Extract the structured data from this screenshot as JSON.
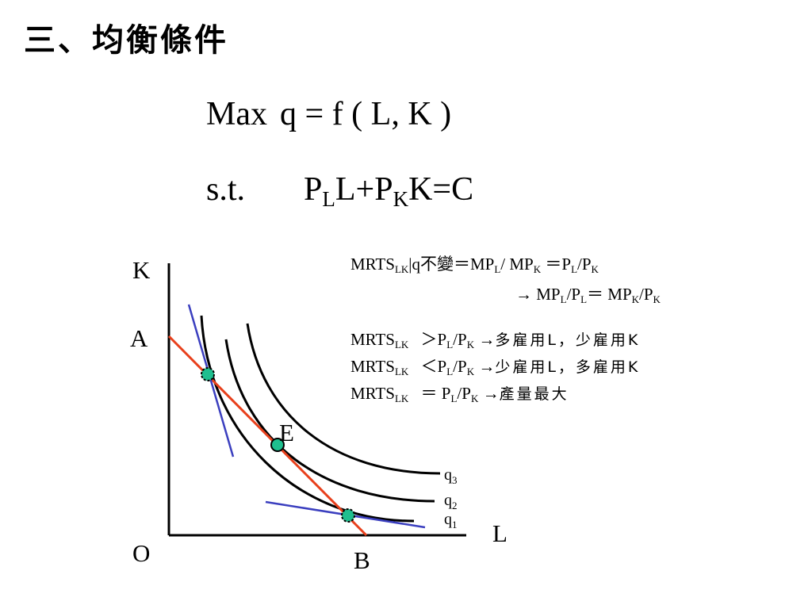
{
  "slide": {
    "title": "三、均衡條件"
  },
  "objective": {
    "max": "Max",
    "function": "q = f ( L, K )"
  },
  "constraint": {
    "label": "s.t.",
    "p1": "P",
    "s1": "L",
    "t1": "L+P",
    "s2": "K",
    "t2": "K=C"
  },
  "conditions": {
    "line1": {
      "a": "MRTS",
      "a_sub": "LK",
      "b": "|q不變＝MP",
      "b_sub": "L",
      "c": "/ MP",
      "c_sub": "K",
      "d": " ＝P",
      "d_sub": "L",
      "e": "/P",
      "e_sub": "K"
    },
    "line2": {
      "a": "→  MP",
      "a_sub": "L",
      "b": "/P",
      "b_sub": "L",
      "c": "＝ MP",
      "c_sub": "K",
      "d": "/P",
      "d_sub": "K"
    },
    "line3": {
      "a": "MRTS",
      "a_sub": "LK",
      "b": " ＞P",
      "b_sub": "L",
      "c": "/P",
      "c_sub": "K",
      "d": " →",
      "e": "多雇用L，少雇用K"
    },
    "line4": {
      "a": "MRTS",
      "a_sub": "LK",
      "b": " ＜P",
      "b_sub": "L",
      "c": "/P",
      "c_sub": "K",
      "d": " →",
      "e": "少雇用L，多雇用K"
    },
    "line5": {
      "a": "MRTS",
      "a_sub": "LK",
      "b": " ＝ P",
      "b_sub": "L",
      "c": "/P",
      "c_sub": "K",
      "d": " →",
      "e": "產量最大"
    }
  },
  "diagram": {
    "labels": {
      "k_axis": "K",
      "l_axis": "L",
      "origin": "O",
      "a": "A",
      "b": "B",
      "e": "E"
    },
    "isoquants": [
      {
        "name": "q",
        "sub": "3"
      },
      {
        "name": "q",
        "sub": "2"
      },
      {
        "name": "q",
        "sub": "1"
      }
    ],
    "colors": {
      "budget_line": "#e8401c",
      "tangent_lines": "#3b3fbf",
      "points": "#1fbf8f",
      "curves": "#000000"
    }
  }
}
